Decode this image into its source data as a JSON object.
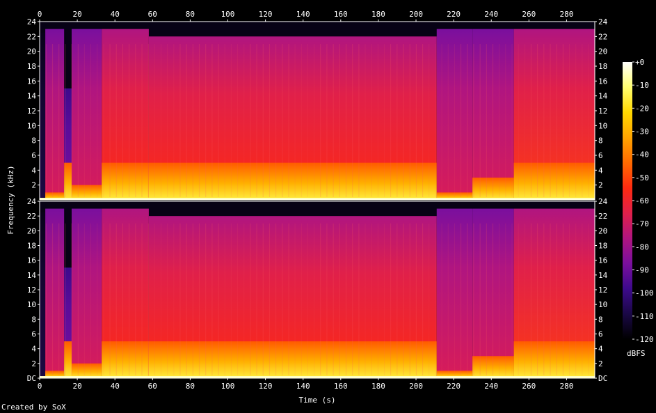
{
  "chart_data": {
    "type": "heatmap",
    "xlabel": "Time (s)",
    "ylabel": "Frequency (kHz)",
    "x_ticks": [
      0,
      20,
      40,
      60,
      80,
      100,
      120,
      140,
      160,
      180,
      200,
      220,
      240,
      260,
      280
    ],
    "y_ticks": [
      "DC",
      "2",
      "4",
      "6",
      "8",
      "10",
      "12",
      "14",
      "16",
      "18",
      "20",
      "22",
      "24"
    ],
    "xlim": [
      0,
      295
    ],
    "ylim_khz": [
      0,
      24
    ],
    "channels": 2,
    "colorbar": {
      "label": "dBFS",
      "ticks": [
        "+0",
        "-10",
        "-20",
        "-30",
        "-40",
        "-50",
        "-60",
        "-70",
        "-80",
        "-90",
        "-100",
        "-110",
        "-120"
      ],
      "range": [
        -120,
        0
      ],
      "colors": [
        "#000000",
        "#1a0845",
        "#3d0a8c",
        "#7a0f9e",
        "#b01580",
        "#e0204a",
        "#ff2a10",
        "#ff6a00",
        "#ffa400",
        "#ffd800",
        "#ffff70",
        "#ffffff"
      ]
    },
    "segments": [
      {
        "t": [
          0,
          3
        ],
        "body_khz": 22.5,
        "lower_khz": 0,
        "level": "silent"
      },
      {
        "t": [
          3,
          13
        ],
        "body_khz": 23,
        "lower_khz": 1,
        "level": "medium"
      },
      {
        "t": [
          13,
          17
        ],
        "body_khz": 15,
        "lower_khz": 5,
        "level": "purple"
      },
      {
        "t": [
          17,
          33
        ],
        "body_khz": 23,
        "lower_khz": 2,
        "level": "medium"
      },
      {
        "t": [
          33,
          58
        ],
        "body_khz": 23,
        "lower_khz": 5,
        "level": "warm"
      },
      {
        "t": [
          58,
          211
        ],
        "body_khz": 22,
        "lower_khz": 5,
        "level": "warm"
      },
      {
        "t": [
          211,
          230
        ],
        "body_khz": 23,
        "lower_khz": 1,
        "level": "medium"
      },
      {
        "t": [
          230,
          252
        ],
        "body_khz": 23,
        "lower_khz": 3,
        "level": "medium"
      },
      {
        "t": [
          252,
          295
        ],
        "body_khz": 23,
        "lower_khz": 5,
        "level": "hot"
      }
    ]
  },
  "credit": "Created by SoX"
}
